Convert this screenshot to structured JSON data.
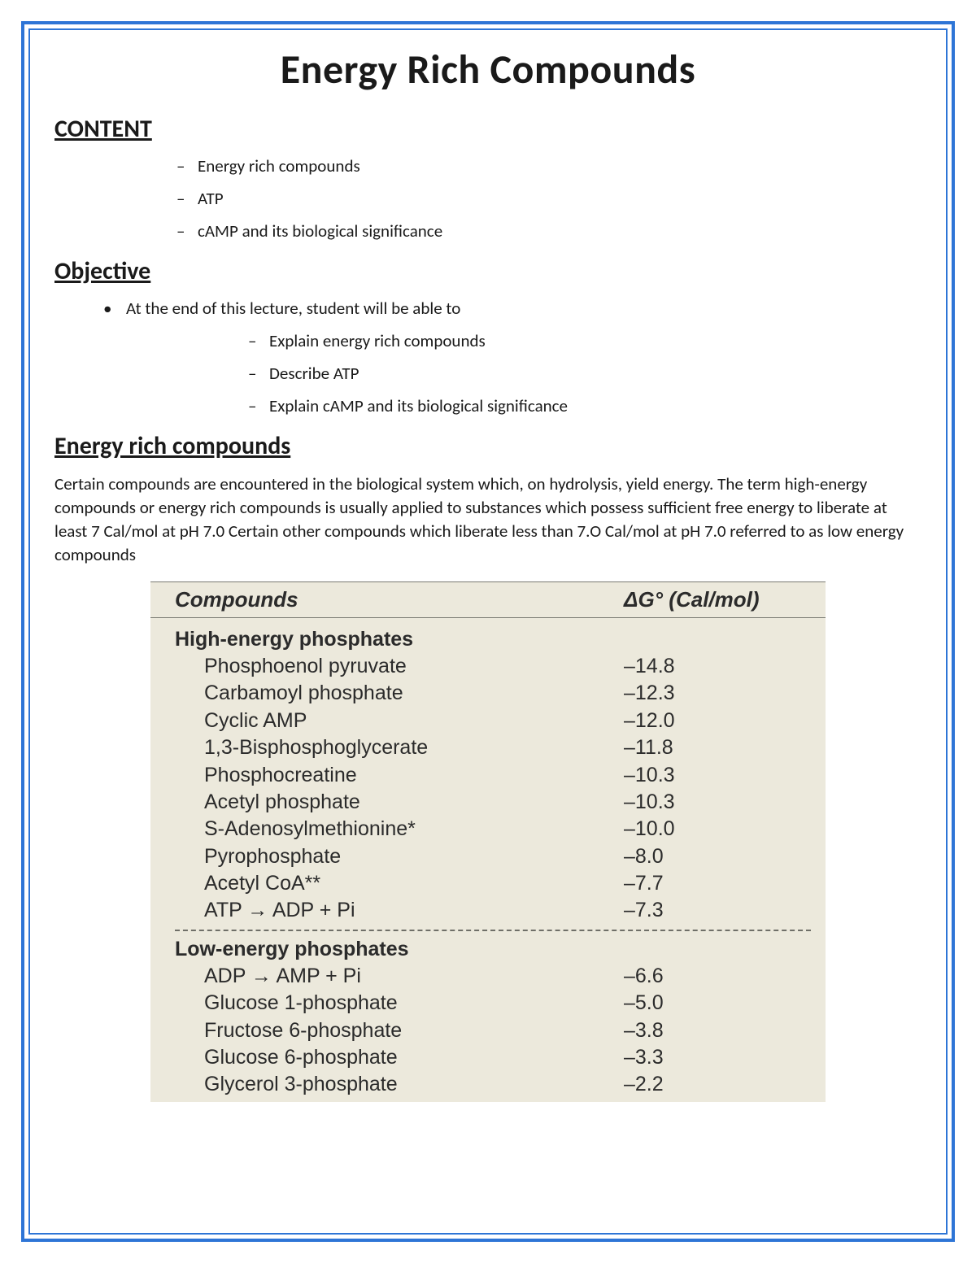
{
  "colors": {
    "outer_border": "#2e75d6",
    "inner_border": "#2e75d6",
    "text": "#1a1a1a",
    "scan_bg": "#ece9dc",
    "scan_text": "#2b2b2b"
  },
  "title": "Energy Rich Compounds",
  "sections": {
    "content": {
      "heading": "CONTENT",
      "items": [
        "Energy rich compounds",
        "ATP",
        "cAMP and its biological significance"
      ]
    },
    "objective": {
      "heading": "Objective",
      "lead": "At the end of this lecture, student will be able to",
      "items": [
        "Explain energy rich compounds",
        "Describe ATP",
        "Explain cAMP and its biological significance"
      ]
    },
    "compounds": {
      "heading": "Energy rich compounds",
      "paragraph": "Certain compounds are encountered in the biological system which, on hydrolysis, yield energy. The term high-energy compounds or energy rich compounds is usually applied to substances which possess sufficient free energy to liberate at least 7 Cal/mol at pH 7.0 Certain other compounds which liberate less than 7.O Cal/mol at pH 7.0 referred to as low energy compounds"
    }
  },
  "table": {
    "header": {
      "col1": "Compounds",
      "col2": "ΔG°  (Cal/mol)"
    },
    "groups": [
      {
        "title": "High-energy phosphates",
        "rows": [
          {
            "name": "Phosphoenol pyruvate",
            "dg": "–14.8"
          },
          {
            "name": "Carbamoyl phosphate",
            "dg": "–12.3"
          },
          {
            "name": "Cyclic AMP",
            "dg": "–12.0"
          },
          {
            "name": "1,3-Bisphosphoglycerate",
            "dg": "–11.8"
          },
          {
            "name": "Phosphocreatine",
            "dg": "–10.3"
          },
          {
            "name": "Acetyl phosphate",
            "dg": "–10.3"
          },
          {
            "name": "S-Adenosylmethionine*",
            "dg": "–10.0"
          },
          {
            "name": "Pyrophosphate",
            "dg": "–8.0"
          },
          {
            "name": "Acetyl CoA**",
            "dg": "–7.7"
          },
          {
            "name": "ATP → ADP + Pi",
            "dg": "–7.3"
          }
        ]
      },
      {
        "title": "Low-energy phosphates",
        "rows": [
          {
            "name": "ADP → AMP + Pi",
            "dg": "–6.6"
          },
          {
            "name": "Glucose 1-phosphate",
            "dg": "–5.0"
          },
          {
            "name": "Fructose 6-phosphate",
            "dg": "–3.8"
          },
          {
            "name": "Glucose 6-phosphate",
            "dg": "–3.3"
          },
          {
            "name": "Glycerol 3-phosphate",
            "dg": "–2.2"
          }
        ]
      }
    ]
  }
}
